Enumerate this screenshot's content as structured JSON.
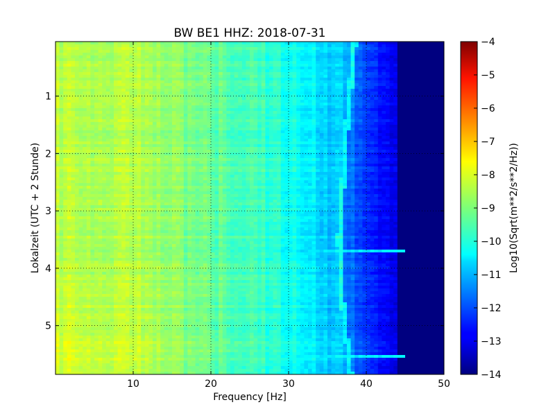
{
  "chart_data": {
    "type": "heatmap",
    "title": "BW BE1 HHZ: 2018-07-31",
    "xlabel": "Frequency [Hz]",
    "ylabel": "Lokalzeit (UTC + 2 Stunde)",
    "xlim": [
      0,
      50
    ],
    "ylim": [
      5.85,
      0.05
    ],
    "x_ticks": [
      10,
      20,
      30,
      40,
      50
    ],
    "y_ticks": [
      1,
      2,
      3,
      4,
      5
    ],
    "grid": true,
    "colormap": "jet",
    "colorbar": {
      "label": "Log10(Sqrt(m**2/s**2/Hz))",
      "range": [
        -14,
        -4
      ],
      "ticks": [
        -14,
        -13,
        -12,
        -11,
        -10,
        -9,
        -8,
        -7,
        -6,
        -5,
        -4
      ]
    },
    "notes": {
      "resonance_line_hz": [
        38.5,
        37.5,
        36.5,
        37.0,
        38.0
      ],
      "resonance_line_hours": [
        0.05,
        1.5,
        3.5,
        4.7,
        5.85
      ],
      "broadband_event_hour": 3.7,
      "broadband_event_hour_2": 5.55
    }
  }
}
